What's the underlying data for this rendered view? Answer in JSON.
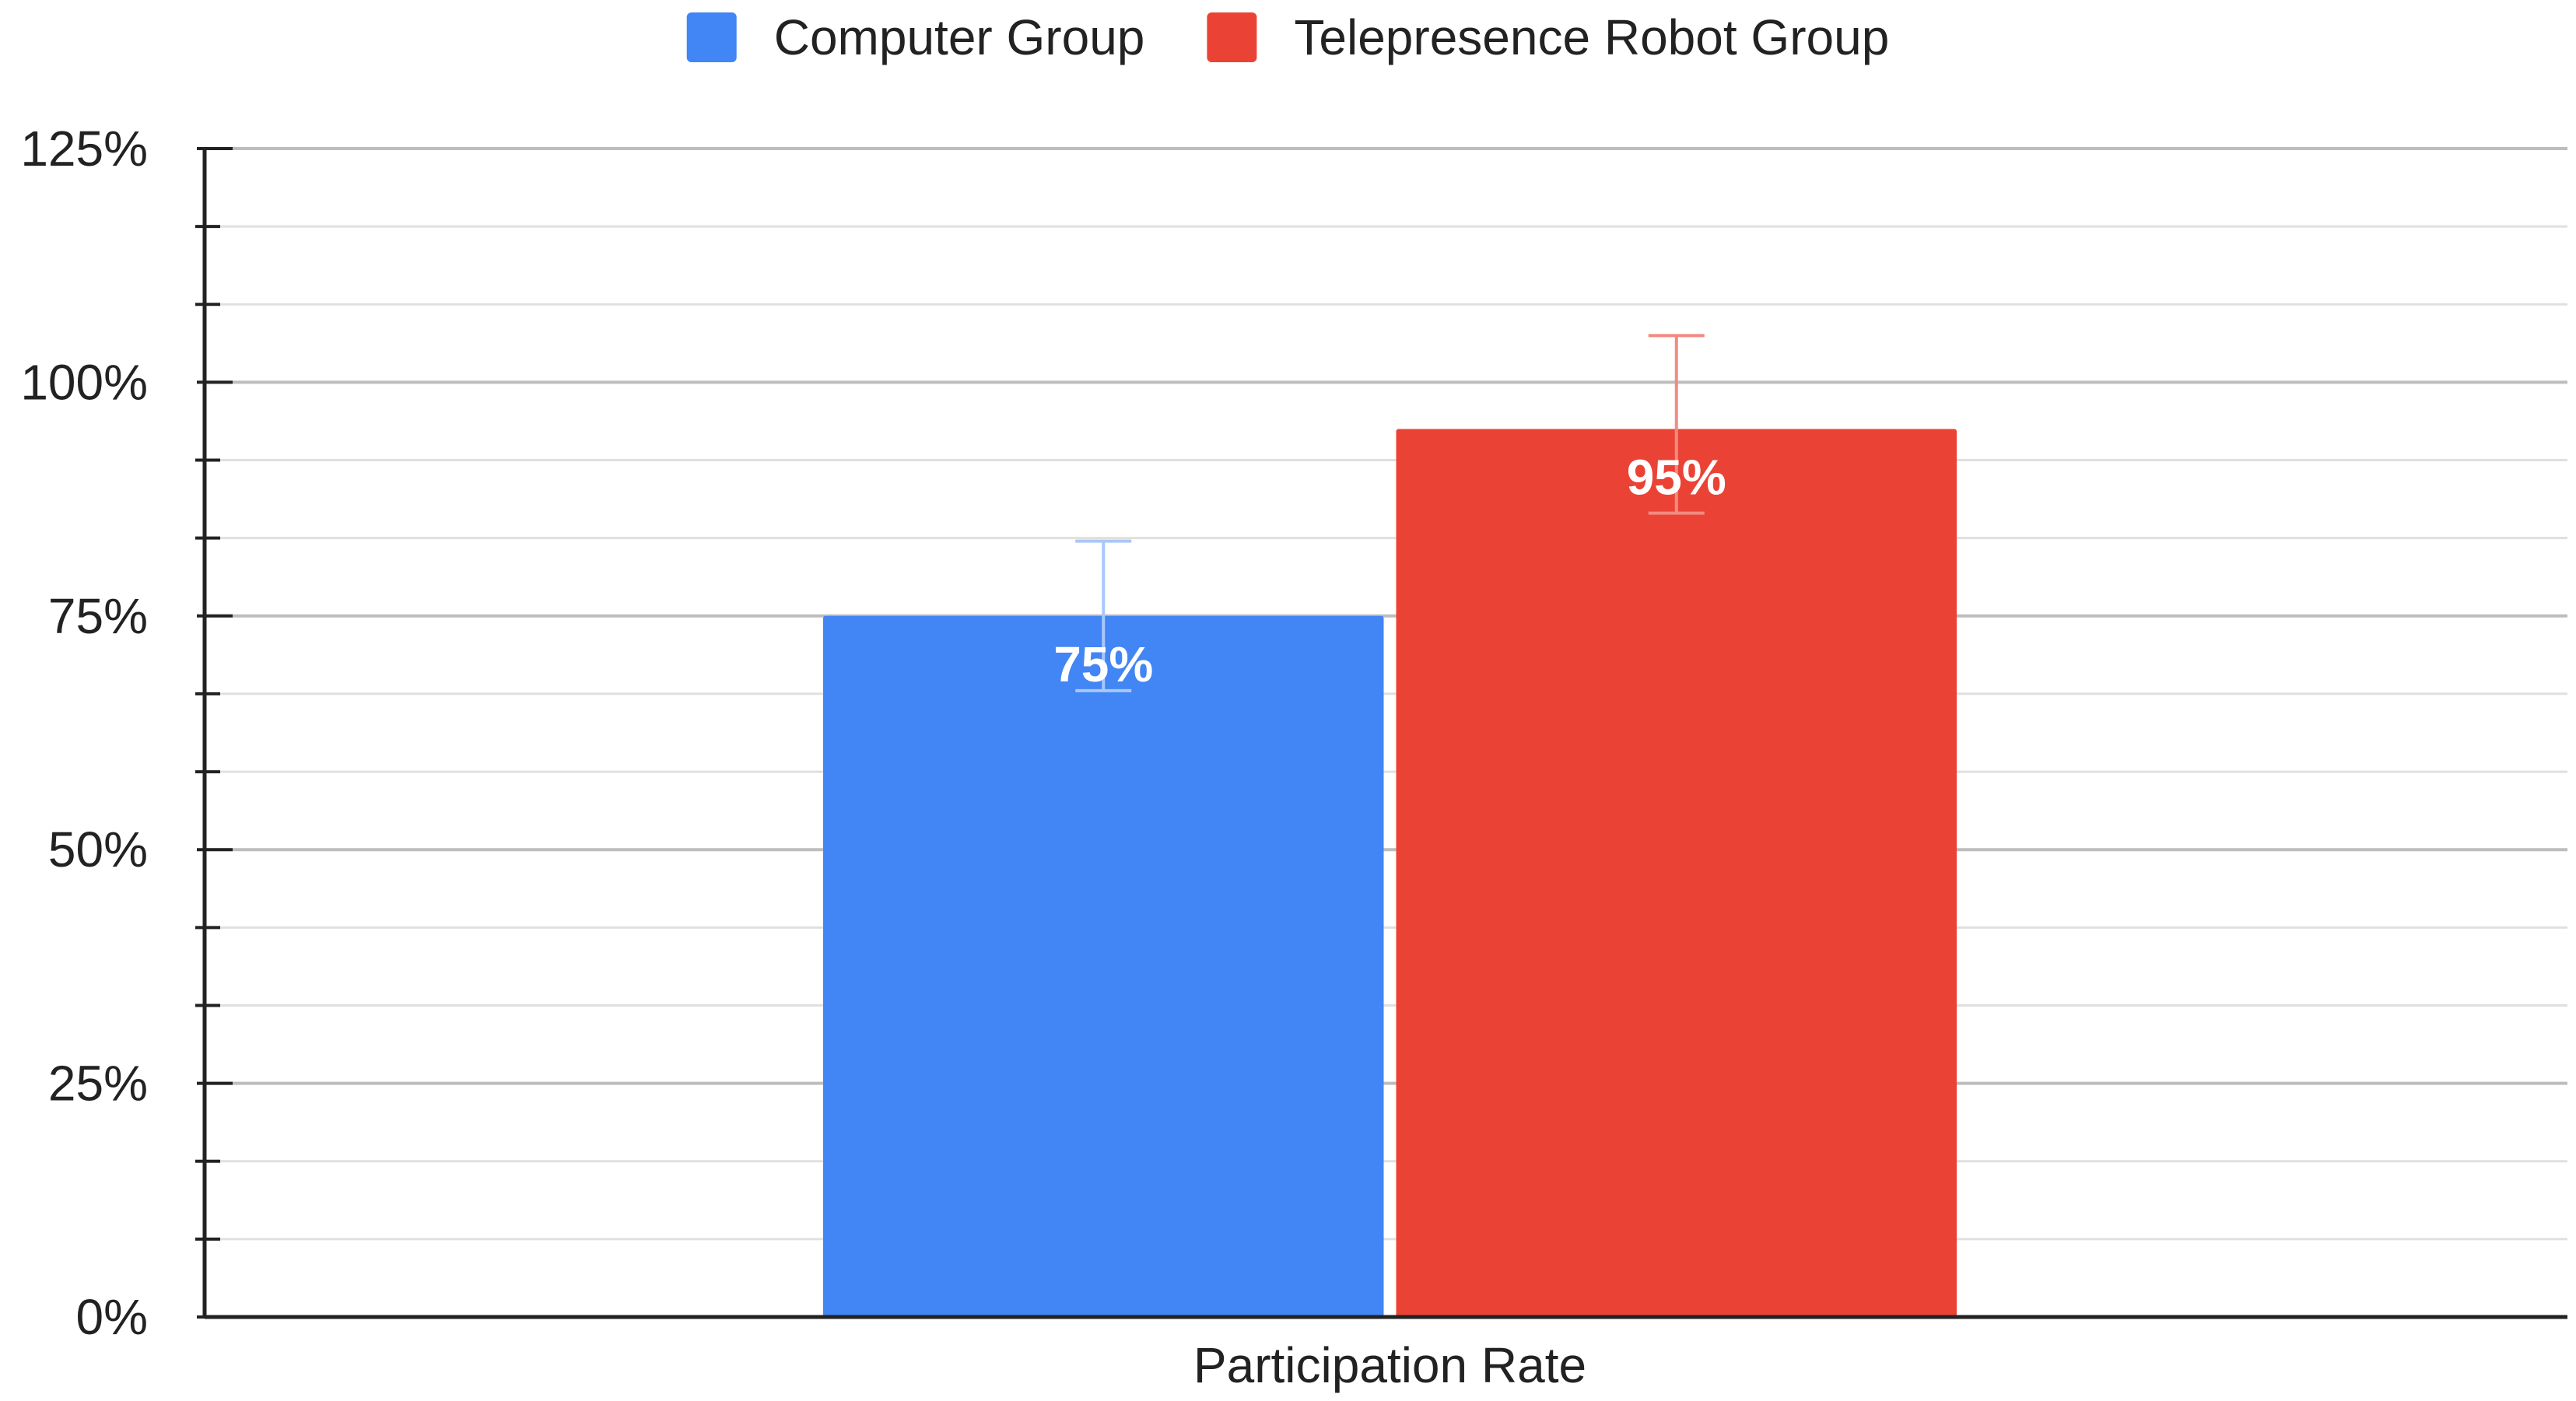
{
  "chart_data": {
    "type": "bar",
    "categories": [
      "Participation Rate"
    ],
    "series": [
      {
        "name": "Computer Group",
        "values": [
          75
        ],
        "data_labels": [
          "75%"
        ],
        "error": [
          [
            67,
            83
          ]
        ],
        "color": "#4285F4",
        "error_color": "#A9C7F8"
      },
      {
        "name": "Telepresence Robot Group",
        "values": [
          95
        ],
        "data_labels": [
          "95%"
        ],
        "error": [
          [
            86,
            105
          ]
        ],
        "color": "#EA4335",
        "error_color": "#F28B82"
      }
    ],
    "title": "",
    "xlabel": "",
    "ylabel": "",
    "ylim": [
      0,
      125
    ],
    "y_ticks": [
      0,
      25,
      50,
      75,
      100,
      125
    ],
    "y_tick_labels": [
      "0%",
      "25%",
      "50%",
      "75%",
      "100%",
      "125%"
    ],
    "minor_ticks_per_major": 3,
    "grid": true,
    "legend_position": "top-center"
  }
}
